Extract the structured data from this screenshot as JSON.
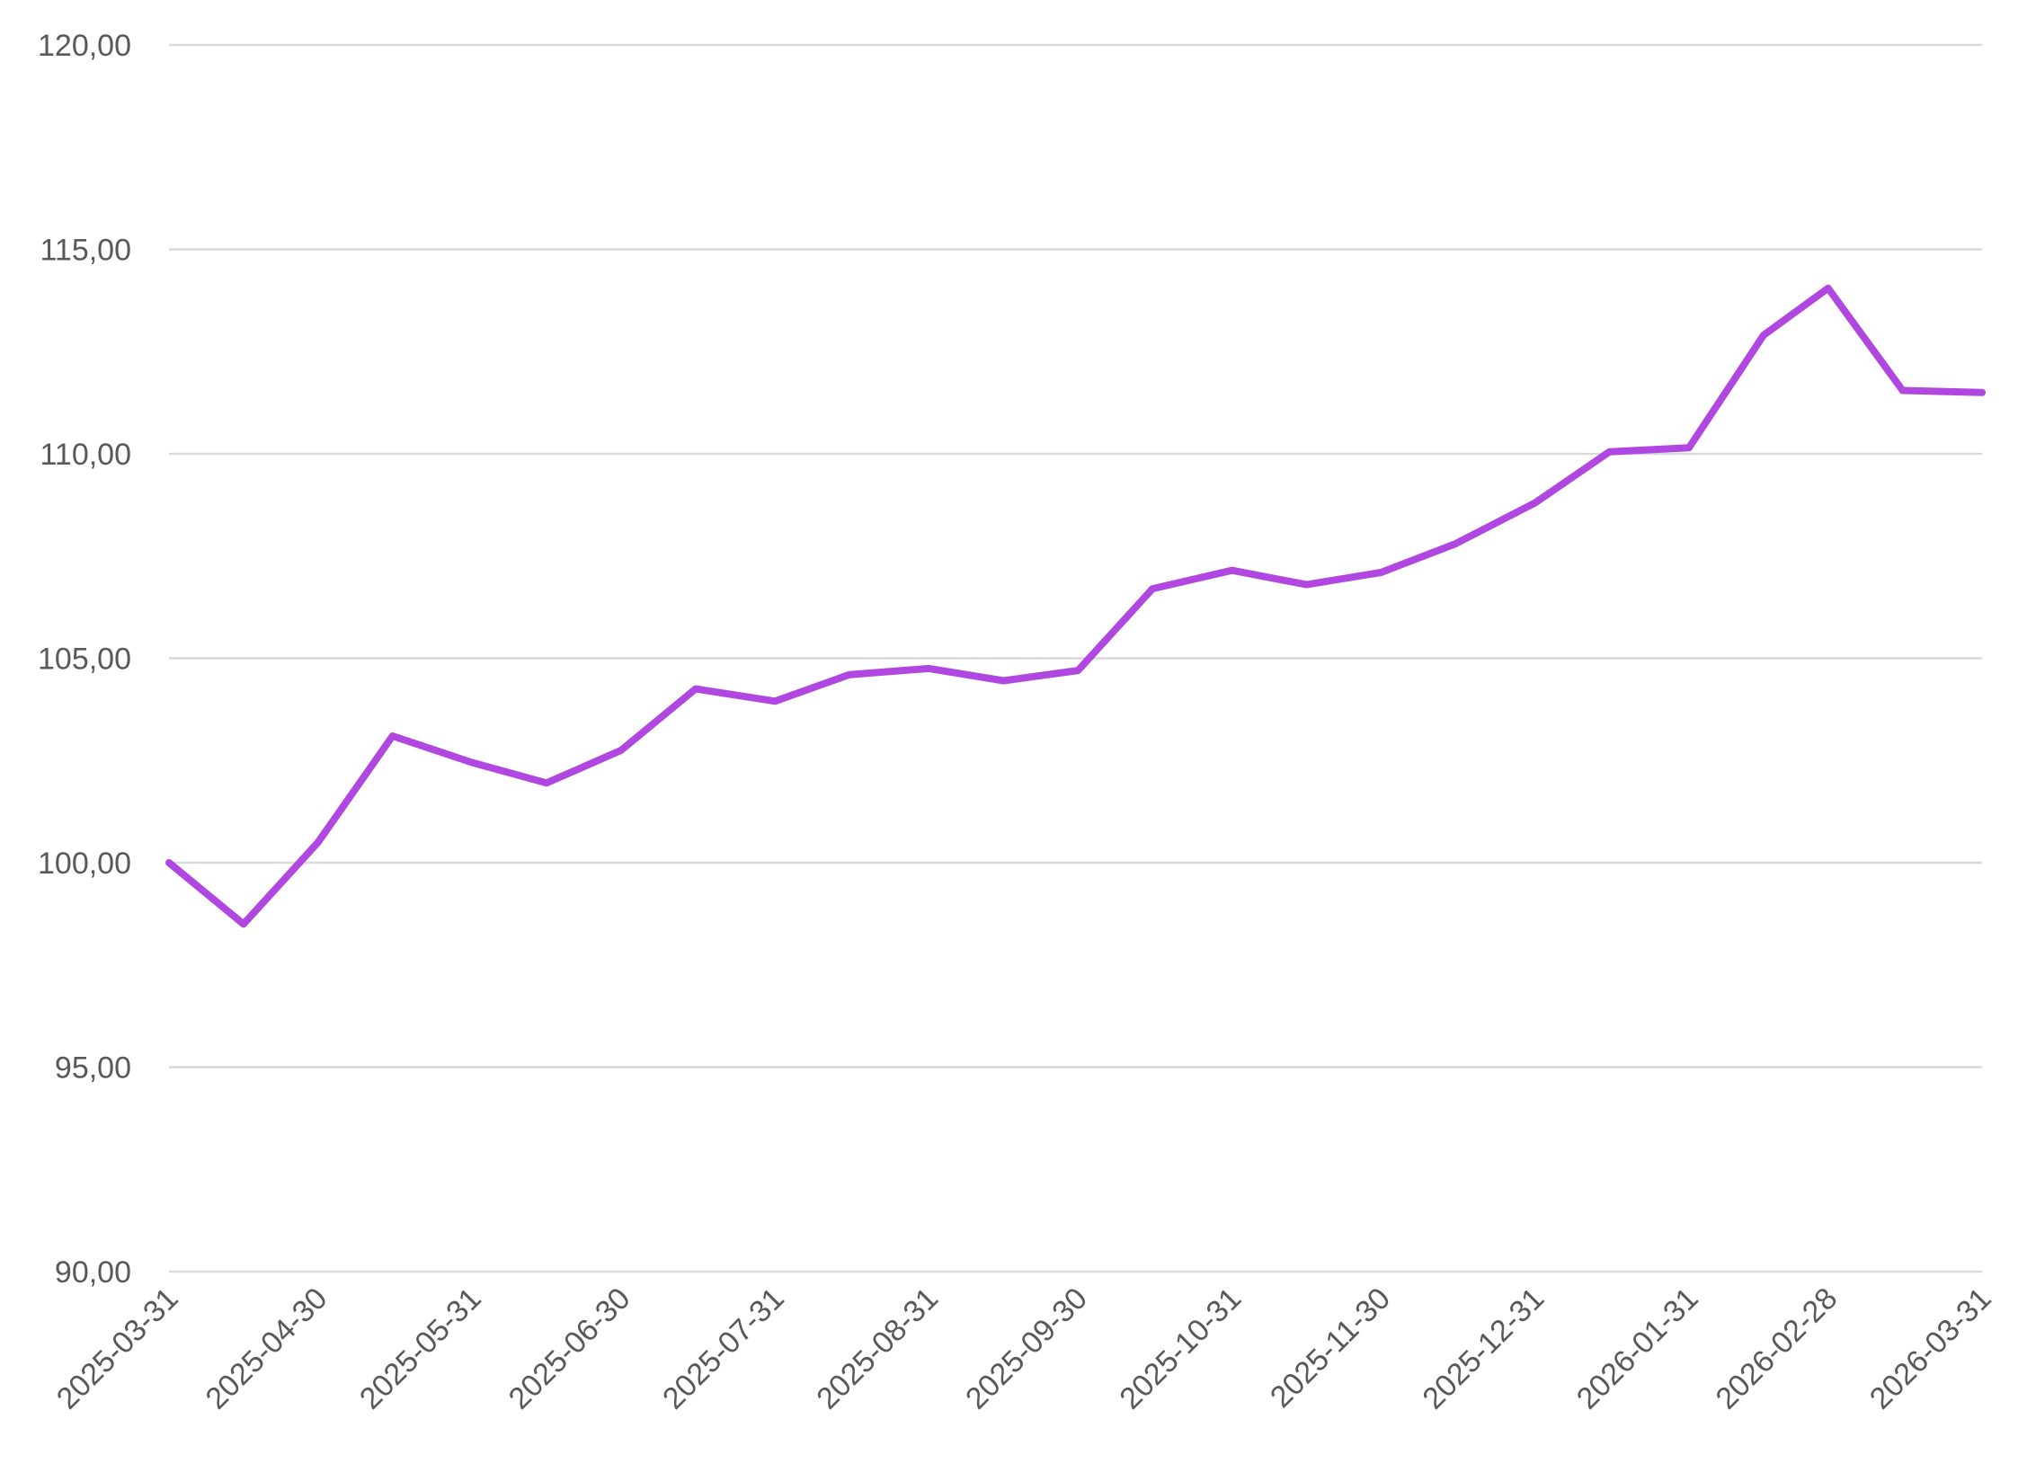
{
  "chart_data": {
    "type": "line",
    "title": "",
    "xlabel": "",
    "ylabel": "",
    "ylim": [
      90,
      120
    ],
    "yticks": [
      90,
      95,
      100,
      105,
      110,
      115,
      120
    ],
    "ytick_labels": [
      "90,00",
      "95,00",
      "100,00",
      "105,00",
      "110,00",
      "115,00",
      "120,00"
    ],
    "xtick_labels": [
      "2025-03-31",
      "2025-04-30",
      "2025-05-31",
      "2025-06-30",
      "2025-07-31",
      "2025-08-31",
      "2025-09-30",
      "2025-10-31",
      "2025-11-30",
      "2025-12-31",
      "2026-01-31",
      "2026-02-28",
      "2026-03-31"
    ],
    "x": [
      "2025-03-31",
      "2025-04-15",
      "2025-04-30",
      "2025-05-15",
      "2025-05-31",
      "2025-06-15",
      "2025-06-30",
      "2025-07-15",
      "2025-07-31",
      "2025-08-15",
      "2025-08-31",
      "2025-09-15",
      "2025-09-30",
      "2025-10-15",
      "2025-10-31",
      "2025-11-15",
      "2025-11-30",
      "2025-12-15",
      "2025-12-31",
      "2026-01-15",
      "2026-01-31",
      "2026-02-15",
      "2026-02-28",
      "2026-03-15",
      "2026-03-31"
    ],
    "series": [
      {
        "color": "#b047e0",
        "values": [
          100.0,
          98.5,
          100.5,
          103.1,
          102.45,
          101.95,
          102.75,
          104.25,
          103.95,
          104.6,
          104.75,
          104.45,
          104.7,
          106.7,
          107.15,
          106.8,
          107.1,
          107.8,
          108.8,
          110.05,
          110.15,
          112.9,
          114.05,
          111.55,
          111.5
        ]
      }
    ],
    "grid": true,
    "legend": "none"
  }
}
